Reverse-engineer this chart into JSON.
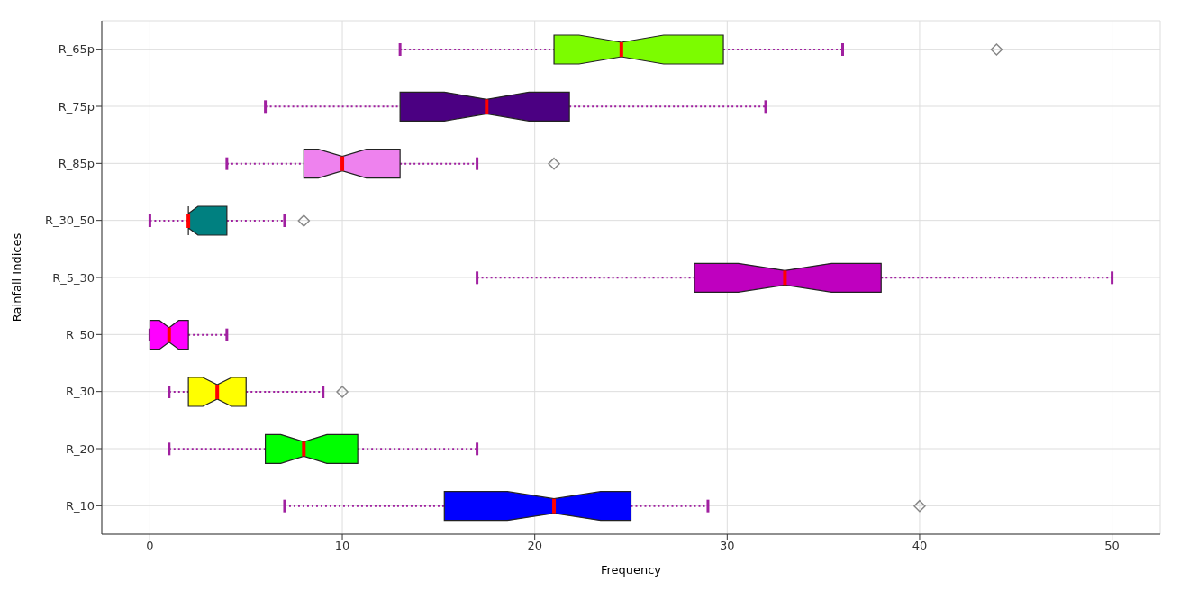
{
  "chart_data": {
    "type": "box",
    "orientation": "horizontal",
    "xlabel": "Frequency",
    "ylabel": "Rainfall Indices",
    "categories": [
      "R_65p",
      "R_75p",
      "R_85p",
      "R_30_50",
      "R_5_30",
      "R_50",
      "R_30",
      "R_20",
      "R_10"
    ],
    "boxes": [
      {
        "low": 13,
        "q1": 21,
        "median": 24.5,
        "q3": 29.8,
        "high": 36,
        "outliers": [
          44
        ]
      },
      {
        "low": 6,
        "q1": 13,
        "median": 17.5,
        "q3": 21.8,
        "high": 32
      },
      {
        "low": 4,
        "q1": 8,
        "median": 10,
        "q3": 13,
        "high": 17,
        "outliers": [
          21
        ]
      },
      {
        "low": 0,
        "q1": 2,
        "median": 2,
        "q3": 4,
        "high": 7,
        "outliers": [
          8
        ]
      },
      {
        "low": 17,
        "q1": 28.3,
        "median": 33,
        "q3": 38,
        "high": 50
      },
      {
        "low": 0,
        "q1": 0,
        "median": 1,
        "q3": 2,
        "high": 4
      },
      {
        "low": 1,
        "q1": 2,
        "median": 3.5,
        "q3": 5,
        "high": 9,
        "outliers": [
          10
        ]
      },
      {
        "low": 1,
        "q1": 6,
        "median": 8,
        "q3": 10.8,
        "high": 17
      },
      {
        "low": 7,
        "q1": 15.3,
        "median": 21,
        "q3": 25,
        "high": 29,
        "outliers": [
          40
        ]
      }
    ],
    "colors": [
      "#7cfc00",
      "#4b0082",
      "#ee82ee",
      "#008080",
      "#bf00bf",
      "#ff00ff",
      "#ffff00",
      "#00ff00",
      "#0000ff"
    ],
    "xlim": [
      -2.5,
      52.5
    ],
    "xticks": [
      0,
      10,
      20,
      30,
      40,
      50
    ],
    "grid": true
  }
}
